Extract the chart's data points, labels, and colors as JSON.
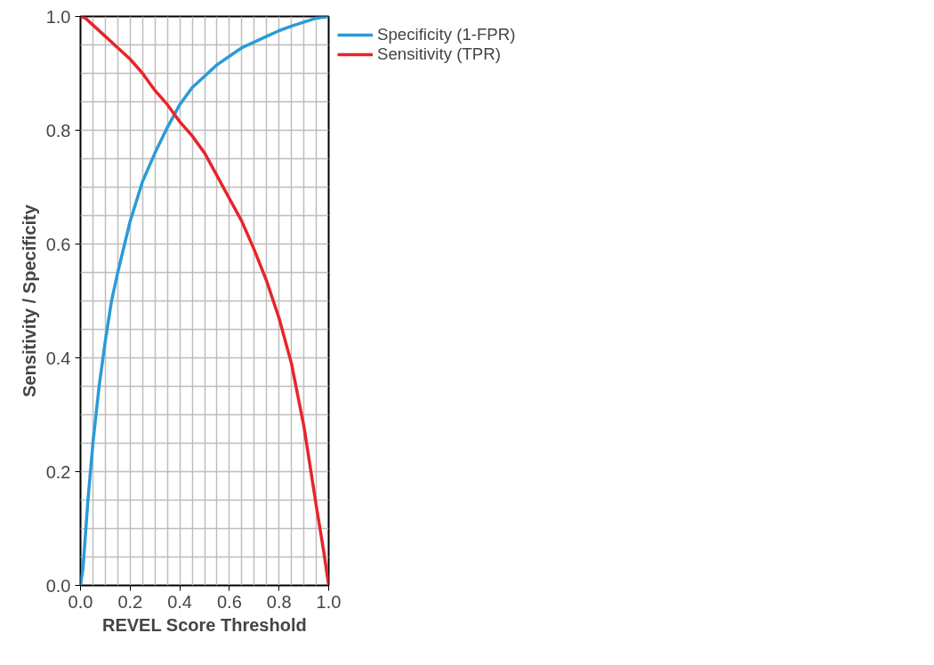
{
  "chart_data": {
    "type": "line",
    "xlabel": "REVEL Score Threshold",
    "ylabel": "Sensitivity / Specificity",
    "xlim": [
      0,
      1
    ],
    "ylim": [
      0,
      1
    ],
    "xticks": [
      {
        "value": 0,
        "label": "0.0"
      },
      {
        "value": 0.2,
        "label": "0.2"
      },
      {
        "value": 0.4,
        "label": "0.4"
      },
      {
        "value": 0.6,
        "label": "0.6"
      },
      {
        "value": 0.8,
        "label": "0.8"
      },
      {
        "value": 1,
        "label": "1.0"
      }
    ],
    "yticks": [
      {
        "value": 0,
        "label": "0.0"
      },
      {
        "value": 0.2,
        "label": "0.2"
      },
      {
        "value": 0.4,
        "label": "0.4"
      },
      {
        "value": 0.6,
        "label": "0.6"
      },
      {
        "value": 0.8,
        "label": "0.8"
      },
      {
        "value": 1,
        "label": "1.0"
      }
    ],
    "grid": true,
    "legend": "top right",
    "line_style": "solid",
    "marker": "none",
    "series": [
      {
        "name": "Specificity (1-FPR)",
        "color": "#2a9bd8",
        "x": [
          0,
          0.01,
          0.02,
          0.03,
          0.05,
          0.075,
          0.1,
          0.125,
          0.15,
          0.2,
          0.25,
          0.3,
          0.35,
          0.4,
          0.45,
          0.5,
          0.55,
          0.6,
          0.65,
          0.7,
          0.75,
          0.8,
          0.85,
          0.9,
          0.95,
          1
        ],
        "values": [
          0,
          0.03,
          0.09,
          0.15,
          0.25,
          0.35,
          0.43,
          0.5,
          0.55,
          0.64,
          0.71,
          0.76,
          0.805,
          0.845,
          0.875,
          0.895,
          0.915,
          0.93,
          0.945,
          0.955,
          0.965,
          0.975,
          0.983,
          0.99,
          0.997,
          1
        ]
      },
      {
        "name": "Sensitivity (TPR)",
        "color": "#e8252a",
        "x": [
          0,
          0.02,
          0.05,
          0.1,
          0.15,
          0.2,
          0.25,
          0.3,
          0.35,
          0.4,
          0.45,
          0.5,
          0.55,
          0.6,
          0.65,
          0.7,
          0.75,
          0.8,
          0.85,
          0.9,
          0.95,
          0.98,
          1
        ],
        "values": [
          1,
          0.997,
          0.985,
          0.965,
          0.945,
          0.925,
          0.9,
          0.87,
          0.845,
          0.815,
          0.79,
          0.76,
          0.72,
          0.68,
          0.64,
          0.59,
          0.535,
          0.47,
          0.39,
          0.28,
          0.14,
          0.06,
          0
        ]
      }
    ]
  }
}
